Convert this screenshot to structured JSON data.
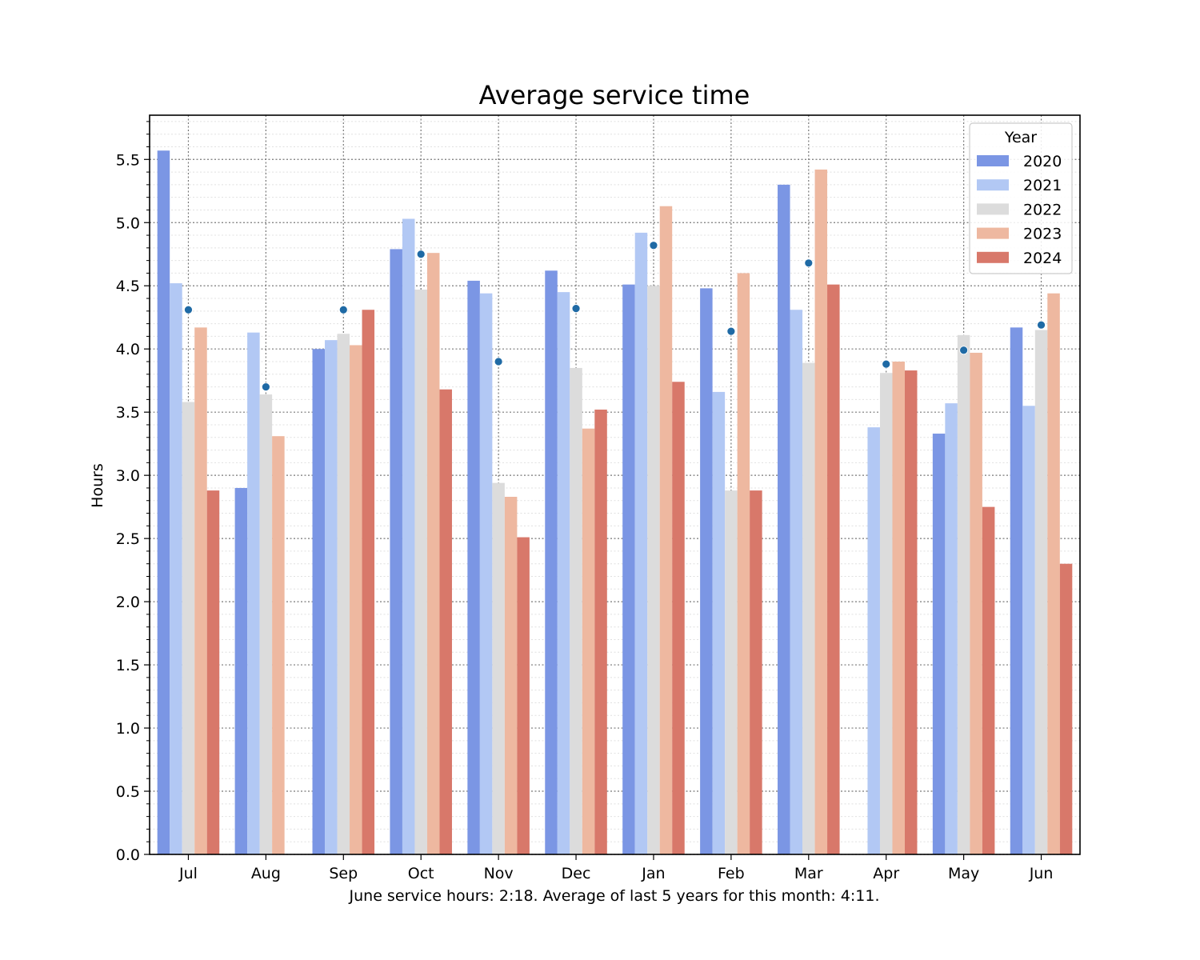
{
  "chart_data": {
    "type": "bar",
    "title": "Average service time",
    "xlabel": "",
    "ylabel": "Hours",
    "caption": "June service hours: 2:18. Average of last 5 years for this month: 4:11.",
    "ylim": [
      0,
      5.85
    ],
    "yticks": [
      "0.0",
      "0.5",
      "1.0",
      "1.5",
      "2.0",
      "2.5",
      "3.0",
      "3.5",
      "4.0",
      "4.5",
      "5.0",
      "5.5"
    ],
    "grid": "major dotted, minor faint dotted",
    "legend_placement": "top-right",
    "legend_title": "Year",
    "categories": [
      "Jul",
      "Aug",
      "Sep",
      "Oct",
      "Nov",
      "Dec",
      "Jan",
      "Feb",
      "Mar",
      "Apr",
      "May",
      "Jun"
    ],
    "series": [
      {
        "name": "2020",
        "color": "#7b96e4",
        "values": [
          5.57,
          2.9,
          4.0,
          4.79,
          4.54,
          4.62,
          4.51,
          4.48,
          5.3,
          null,
          3.33,
          4.17
        ]
      },
      {
        "name": "2021",
        "color": "#b2c8f4",
        "values": [
          4.52,
          4.13,
          4.07,
          5.03,
          4.44,
          4.45,
          4.92,
          3.66,
          4.31,
          3.38,
          3.57,
          3.55
        ]
      },
      {
        "name": "2022",
        "color": "#dcdcdc",
        "values": [
          3.58,
          3.64,
          4.12,
          4.47,
          2.94,
          3.85,
          4.5,
          2.88,
          3.89,
          3.81,
          4.11,
          4.15
        ]
      },
      {
        "name": "2023",
        "color": "#eeb8a0",
        "values": [
          4.17,
          3.31,
          4.03,
          4.76,
          2.83,
          3.37,
          5.13,
          4.6,
          5.42,
          3.9,
          3.97,
          4.44
        ]
      },
      {
        "name": "2024",
        "color": "#d8786a",
        "values": [
          2.88,
          null,
          4.31,
          3.68,
          2.51,
          3.52,
          3.74,
          2.88,
          4.51,
          3.83,
          2.75,
          2.3
        ]
      }
    ],
    "average_marker_color": "#1f6aa5",
    "averages": [
      4.31,
      3.7,
      4.31,
      4.75,
      3.9,
      4.32,
      4.82,
      4.14,
      4.68,
      3.88,
      3.99,
      4.19
    ]
  }
}
